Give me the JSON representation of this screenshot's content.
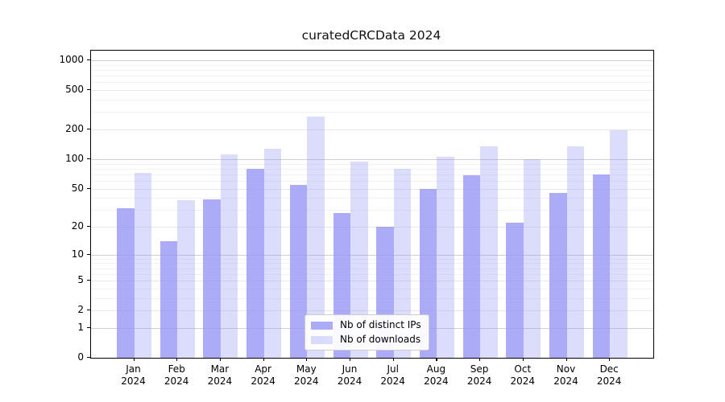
{
  "title": "curatedCRCData 2024",
  "chart_data": {
    "type": "bar",
    "title": "curatedCRCData 2024",
    "scale": "log10(value+1)",
    "grid": true,
    "legend_position": "lower center",
    "categories": [
      "Jan",
      "Feb",
      "Mar",
      "Apr",
      "May",
      "Jun",
      "Jul",
      "Aug",
      "Sep",
      "Oct",
      "Nov",
      "Dec"
    ],
    "x_tick_year": "2024",
    "series": [
      {
        "name": "Nb of distinct IPs",
        "color_rgba": "rgba(150,150,246,0.8)",
        "values": [
          31,
          14,
          39,
          79,
          54,
          28,
          20,
          50,
          68,
          22,
          45,
          70
        ]
      },
      {
        "name": "Nb of downloads",
        "color_rgba": "rgba(150,150,246,0.33)",
        "values": [
          73,
          38,
          111,
          128,
          270,
          95,
          79,
          106,
          136,
          100,
          136,
          196
        ]
      }
    ],
    "y_ticks": [
      1000,
      500,
      200,
      100,
      50,
      20,
      10,
      5,
      2,
      1,
      0
    ],
    "y_minor_gridlines": [
      3,
      4,
      6,
      7,
      8,
      9,
      30,
      40,
      60,
      70,
      80,
      90,
      300,
      400,
      600,
      700,
      800,
      900
    ],
    "ylim": [
      0,
      1200
    ],
    "colors": {
      "bar_base": "#9696f6",
      "grid_major": "#cfcfcf",
      "grid_labeled": "#e7e7e7",
      "grid_minor": "#f2f2f2",
      "axis": "#000000",
      "background": "#ffffff"
    }
  }
}
